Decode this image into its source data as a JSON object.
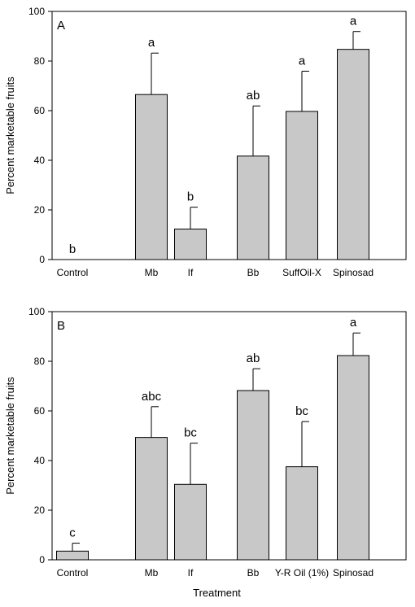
{
  "chart_data": [
    {
      "type": "bar",
      "panel_label": "A",
      "ylabel": "Percent marketable fruits",
      "xlabel": "",
      "ylim": [
        0,
        100
      ],
      "yticks": [
        0,
        20,
        40,
        60,
        80,
        100
      ],
      "categories": [
        "Control",
        "Mb",
        "If",
        "Bb",
        "SuffOil-X",
        "Spinosad"
      ],
      "values": [
        0,
        66.5,
        12.3,
        41.7,
        59.7,
        84.7
      ],
      "errors": [
        0,
        16.7,
        8.8,
        20.2,
        16.2,
        7.2
      ],
      "letters": [
        "b",
        "a",
        "b",
        "ab",
        "a",
        "a"
      ],
      "bar_color": "#c8c8c8"
    },
    {
      "type": "bar",
      "panel_label": "B",
      "ylabel": "Percent marketable fruits",
      "xlabel": "Treatment",
      "ylim": [
        0,
        100
      ],
      "yticks": [
        0,
        20,
        40,
        60,
        80,
        100
      ],
      "categories": [
        "Control",
        "Mb",
        "If",
        "Bb",
        "Y-R Oil (1%)",
        "Spinosad"
      ],
      "values": [
        3.5,
        49.3,
        30.4,
        68.2,
        37.5,
        82.3
      ],
      "errors": [
        3.2,
        12.4,
        16.6,
        8.8,
        18.2,
        9.1
      ],
      "letters": [
        "c",
        "abc",
        "bc",
        "ab",
        "bc",
        "a"
      ],
      "bar_color": "#c8c8c8"
    }
  ]
}
